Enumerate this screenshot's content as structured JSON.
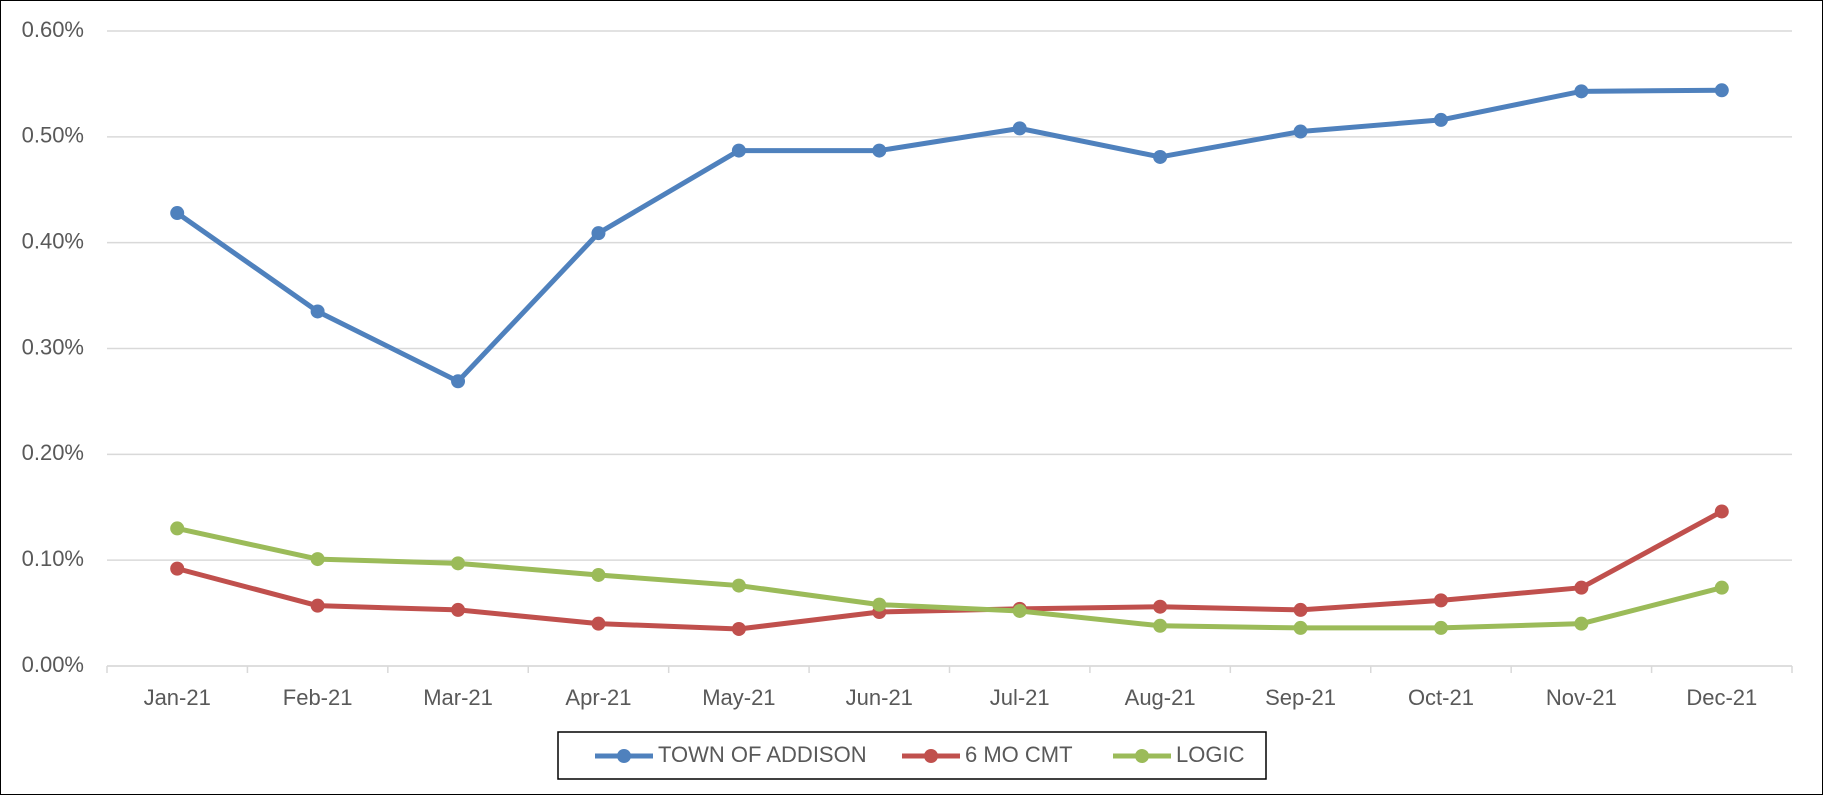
{
  "chart_data": {
    "type": "line",
    "categories": [
      "Jan-21",
      "Feb-21",
      "Mar-21",
      "Apr-21",
      "May-21",
      "Jun-21",
      "Jul-21",
      "Aug-21",
      "Sep-21",
      "Oct-21",
      "Nov-21",
      "Dec-21"
    ],
    "series": [
      {
        "name": "TOWN OF ADDISON",
        "color": "#4f81bd",
        "values": [
          0.428,
          0.335,
          0.269,
          0.409,
          0.487,
          0.487,
          0.508,
          0.481,
          0.505,
          0.516,
          0.543,
          0.544
        ]
      },
      {
        "name": "6 MO CMT",
        "color": "#c0504d",
        "values": [
          0.092,
          0.057,
          0.053,
          0.04,
          0.035,
          0.051,
          0.054,
          0.056,
          0.053,
          0.062,
          0.074,
          0.146
        ]
      },
      {
        "name": "LOGIC",
        "color": "#9bbb59",
        "values": [
          0.13,
          0.101,
          0.097,
          0.086,
          0.076,
          0.058,
          0.052,
          0.038,
          0.036,
          0.036,
          0.04,
          0.074
        ]
      }
    ],
    "ylim": [
      0,
      0.6
    ],
    "yticks": [
      {
        "value": 0,
        "label": "0.00%"
      },
      {
        "value": 0.1,
        "label": "0.10%"
      },
      {
        "value": 0.2,
        "label": "0.20%"
      },
      {
        "value": 0.3,
        "label": "0.30%"
      },
      {
        "value": 0.4,
        "label": "0.40%"
      },
      {
        "value": 0.5,
        "label": "0.50%"
      },
      {
        "value": 0.6,
        "label": "0.60%"
      }
    ],
    "grid": true,
    "legend": "bottom"
  }
}
